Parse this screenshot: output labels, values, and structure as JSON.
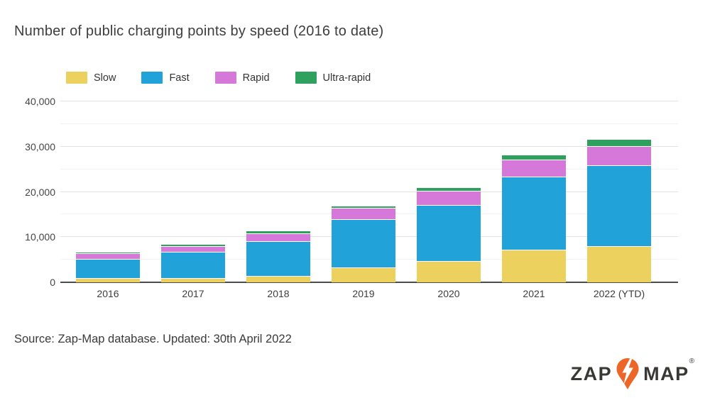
{
  "title": "Number of public charging points by speed (2016 to date)",
  "source": "Source: Zap-Map database. Updated: 30th April 2022",
  "logo": {
    "zap": "ZAP",
    "map": "MAP",
    "registered": "®",
    "pin_color": "#ee6528",
    "text_color": "#3a3835"
  },
  "colors": {
    "slow": "#ecd15f",
    "fast": "#21a3da",
    "rapid": "#d678d9",
    "ultra_rapid": "#2ea15e",
    "gridline_major": "#e2e2e2",
    "gridline_minor": "#f2f2f2",
    "axis": "#4c4c4c",
    "text": "#3d3d3d"
  },
  "chart_data": {
    "type": "bar",
    "stacked": true,
    "title": "Number of public charging points by speed (2016 to date)",
    "categories": [
      "2016",
      "2017",
      "2018",
      "2019",
      "2020",
      "2021",
      "2022 (YTD)"
    ],
    "series": [
      {
        "name": "Slow",
        "color": "#ecd15f",
        "values": [
          950,
          900,
          1400,
          3300,
          4650,
          7250,
          7950
        ]
      },
      {
        "name": "Fast",
        "color": "#21a3da",
        "values": [
          4300,
          5900,
          7700,
          10700,
          12450,
          16100,
          17950
        ]
      },
      {
        "name": "Rapid",
        "color": "#d678d9",
        "values": [
          1150,
          1200,
          1750,
          2400,
          3150,
          3850,
          4250
        ]
      },
      {
        "name": "Ultra-rapid",
        "color": "#2ea15e",
        "values": [
          150,
          300,
          450,
          550,
          800,
          1050,
          1500
        ]
      }
    ],
    "totals": [
      6550,
      8300,
      11300,
      16950,
      21050,
      28250,
      31650
    ],
    "xlabel": "",
    "ylabel": "",
    "ylim": [
      0,
      40000
    ],
    "yticks": [
      0,
      10000,
      20000,
      30000,
      40000
    ],
    "ytick_labels": [
      "0",
      "10,000",
      "20,000",
      "30,000",
      "40,000"
    ],
    "minor_yticks": [
      5000,
      15000,
      25000,
      35000
    ],
    "grid": true,
    "legend_position": "top"
  }
}
